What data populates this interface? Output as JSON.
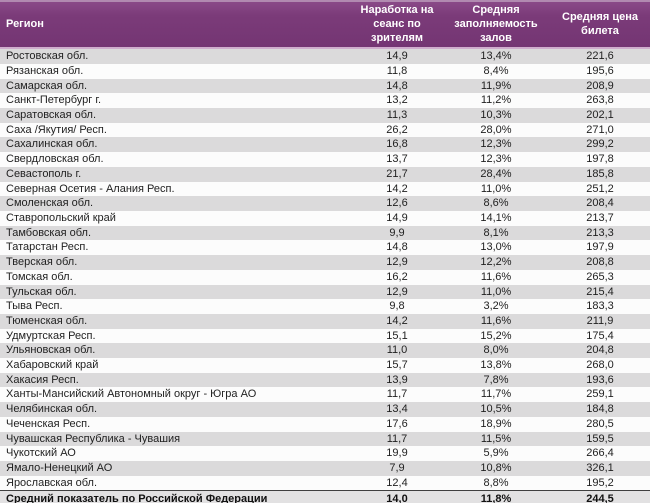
{
  "table": {
    "columns": [
      {
        "key": "region",
        "label": "Регион",
        "align": "left"
      },
      {
        "key": "sessions",
        "label": "Наработка на сеанс по зрителям",
        "align": "center"
      },
      {
        "key": "occupancy",
        "label": "Средняя заполняемость залов",
        "align": "center"
      },
      {
        "key": "price",
        "label": "Средняя цена билета",
        "align": "center"
      }
    ],
    "rows": [
      [
        "Ростовская обл.",
        "14,9",
        "13,4%",
        "221,6"
      ],
      [
        "Рязанская обл.",
        "11,8",
        "8,4%",
        "195,6"
      ],
      [
        "Самарская обл.",
        "14,8",
        "11,9%",
        "208,9"
      ],
      [
        "Санкт-Петербург г.",
        "13,2",
        "11,2%",
        "263,8"
      ],
      [
        "Саратовская обл.",
        "11,3",
        "10,3%",
        "202,1"
      ],
      [
        "Саха /Якутия/ Респ.",
        "26,2",
        "28,0%",
        "271,0"
      ],
      [
        "Сахалинская обл.",
        "16,8",
        "12,3%",
        "299,2"
      ],
      [
        "Свердловская обл.",
        "13,7",
        "12,3%",
        "197,8"
      ],
      [
        "Севастополь г.",
        "21,7",
        "28,4%",
        "185,8"
      ],
      [
        "Северная Осетия - Алания Респ.",
        "14,2",
        "11,0%",
        "251,2"
      ],
      [
        "Смоленская обл.",
        "12,6",
        "8,6%",
        "208,4"
      ],
      [
        "Ставропольский край",
        "14,9",
        "14,1%",
        "213,7"
      ],
      [
        "Тамбовская обл.",
        "9,9",
        "8,1%",
        "213,3"
      ],
      [
        "Татарстан Респ.",
        "14,8",
        "13,0%",
        "197,9"
      ],
      [
        "Тверская обл.",
        "12,9",
        "12,2%",
        "208,8"
      ],
      [
        "Томская обл.",
        "16,2",
        "11,6%",
        "265,3"
      ],
      [
        "Тульская обл.",
        "12,9",
        "11,0%",
        "215,4"
      ],
      [
        "Тыва Респ.",
        "9,8",
        "3,2%",
        "183,3"
      ],
      [
        "Тюменская обл.",
        "14,2",
        "11,6%",
        "211,9"
      ],
      [
        "Удмуртская Респ.",
        "15,1",
        "15,2%",
        "175,4"
      ],
      [
        "Ульяновская обл.",
        "11,0",
        "8,0%",
        "204,8"
      ],
      [
        "Хабаровский край",
        "15,7",
        "13,8%",
        "268,0"
      ],
      [
        "Хакасия Респ.",
        "13,9",
        "7,8%",
        "193,6"
      ],
      [
        "Ханты-Мансийский Автономный округ - Югра АО",
        "11,7",
        "11,7%",
        "259,1"
      ],
      [
        "Челябинская обл.",
        "13,4",
        "10,5%",
        "184,8"
      ],
      [
        "Чеченская Респ.",
        "17,6",
        "18,9%",
        "280,5"
      ],
      [
        "Чувашская Республика - Чувашия",
        "11,7",
        "11,5%",
        "159,5"
      ],
      [
        "Чукотский АО",
        "19,9",
        "5,9%",
        "266,4"
      ],
      [
        "Ямало-Ненецкий АО",
        "7,9",
        "10,8%",
        "326,1"
      ],
      [
        "Ярославская обл.",
        "12,4",
        "8,8%",
        "195,2"
      ]
    ],
    "footer": [
      "Средний показатель по Российской Федерации",
      "14,0",
      "11,8%",
      "244,5"
    ]
  },
  "colors": {
    "header_bg": "#7B3B79",
    "header_text": "#FFFFFF",
    "header_top_border": "#B18AB0",
    "header_bottom_border": "#CFADCD",
    "row_alt_bg": "#DBDADB",
    "row_bg": "#FCFCFC",
    "footer_bg": "#E2E1E2",
    "footer_border": "#3F3F3F",
    "body_text": "#1F1F1F"
  }
}
